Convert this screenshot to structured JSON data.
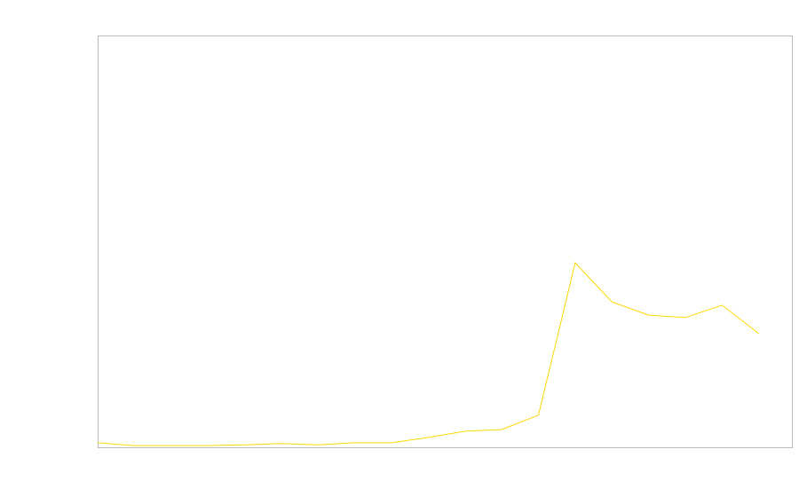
{
  "chart_data": {
    "type": "line",
    "title": "",
    "xlabel": "",
    "ylabel": "",
    "x": [
      0,
      1,
      2,
      3,
      4,
      5,
      6,
      7,
      8,
      9,
      10,
      11,
      12,
      13,
      14,
      15,
      16,
      17,
      18
    ],
    "series": [
      {
        "values": [
          1.1,
          0.4,
          0.4,
          0.4,
          0.6,
          0.9,
          0.6,
          1.1,
          1.1,
          2.4,
          3.9,
          4.3,
          7.8,
          44.8,
          35.3,
          32.1,
          31.5,
          34.5,
          27.6
        ],
        "color": "#ffd700"
      }
    ],
    "xlim": [
      0,
      18.9
    ],
    "ylim": [
      0,
      100
    ],
    "grid": false,
    "axis_frame_color": "#bbbbbb",
    "tick_labels_shown": false
  }
}
